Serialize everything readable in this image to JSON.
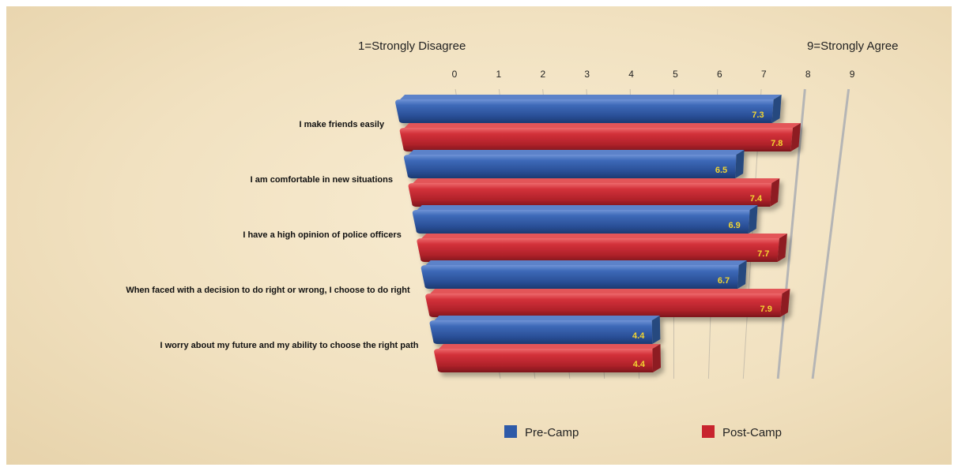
{
  "chart_data": {
    "type": "bar",
    "orientation": "horizontal",
    "left_anchor": "1=Strongly Disagree",
    "right_anchor": "9=Strongly Agree",
    "xticks": [
      "0",
      "1",
      "2",
      "3",
      "4",
      "5",
      "6",
      "7",
      "8",
      "9"
    ],
    "xlim": [
      0,
      9
    ],
    "categories": [
      "I make friends easily",
      "I am comfortable in new situations",
      "I have a high opinion of police officers",
      "When faced with a decision to do right or wrong, I choose to do right",
      "I worry about my future and my ability to choose the right path"
    ],
    "series": [
      {
        "name": "Pre-Camp",
        "values": [
          7.3,
          6.5,
          6.9,
          6.7,
          4.4
        ],
        "color": "#2e5aa8"
      },
      {
        "name": "Post-Camp",
        "values": [
          7.8,
          7.4,
          7.7,
          7.9,
          4.4
        ],
        "color": "#c8242e"
      }
    ],
    "value_label_color": "#f2d531",
    "legend_position": "bottom"
  }
}
